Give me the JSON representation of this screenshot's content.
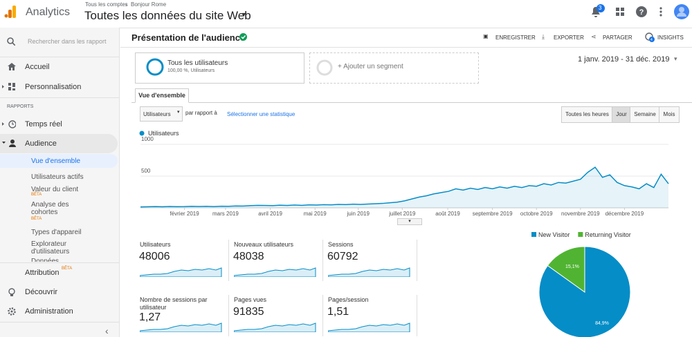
{
  "header": {
    "app": "Analytics",
    "breadcrumb_1": "Tous les comptes",
    "breadcrumb_2": "Bonjour Rome",
    "view": "Toutes les données du site Web",
    "notifications": "3"
  },
  "sidebar": {
    "search": "Rechercher dans les rapport",
    "items": [
      "Accueil",
      "Personnalisation"
    ],
    "section": "RAPPORTS",
    "reports": [
      "Temps réel",
      "Audience"
    ],
    "audience": [
      "Vue d'ensemble",
      "Utilisateurs actifs",
      "Valeur du client",
      "Analyse des cohortes",
      "Types d'appareil",
      "Explorateur d'utilisateurs",
      "Données"
    ],
    "beta": "BÊTA",
    "bottom": [
      "Attribution",
      "Découvrir",
      "Administration"
    ]
  },
  "report": {
    "title": "Présentation de l'audience",
    "actions": [
      "ENREGISTRER",
      "EXPORTER",
      "PARTAGER",
      "INSIGHTS"
    ],
    "insights_count": "4",
    "segment": "Tous les utilisateurs",
    "segment_sub": "100,00 %, Utilisateurs",
    "add_segment": "+ Ajouter un segment",
    "date_range": "1 janv. 2019 - 31 déc. 2019",
    "tab": "Vue d'ensemble",
    "metric_select": "Utilisateurs",
    "compare": "par rapport à",
    "select_stat": "Sélectionner une statistique",
    "granularity": [
      "Toutes les heures",
      "Jour",
      "Semaine",
      "Mois"
    ]
  },
  "metrics": [
    {
      "label": "Utilisateurs",
      "value": "48006"
    },
    {
      "label": "Nouveaux utilisateurs",
      "value": "48038"
    },
    {
      "label": "Sessions",
      "value": "60792"
    },
    {
      "label": "Nombre de sessions par utilisateur",
      "value": "1,27"
    },
    {
      "label": "Pages vues",
      "value": "91835"
    },
    {
      "label": "Pages/session",
      "value": "1,51"
    }
  ],
  "chart_data": [
    {
      "type": "line",
      "series": [
        {
          "name": "Utilisateurs",
          "color": "#058dc7",
          "values": [
            15,
            18,
            20,
            17,
            22,
            19,
            20,
            25,
            22,
            24,
            21,
            26,
            25,
            30,
            28,
            35,
            40,
            38,
            35,
            42,
            38,
            45,
            40,
            48,
            45,
            50,
            48,
            55,
            52,
            58,
            55,
            60,
            65,
            70,
            80,
            90,
            110,
            140,
            170,
            190,
            220,
            240,
            260,
            300,
            280,
            310,
            290,
            320,
            300,
            330,
            310,
            340,
            320,
            350,
            340,
            380,
            360,
            400,
            390,
            420,
            450,
            560,
            640,
            480,
            520,
            400,
            350,
            330,
            300,
            380,
            320,
            530,
            380
          ]
        }
      ],
      "xlim": [
        0,
        72
      ],
      "xticks": [
        {
          "value": 6,
          "label": "février 2019"
        },
        {
          "value": 11.6,
          "label": "mars 2019"
        },
        {
          "value": 17.7,
          "label": "avril 2019"
        },
        {
          "value": 23.8,
          "label": "mai 2019"
        },
        {
          "value": 29.7,
          "label": "juin 2019"
        },
        {
          "value": 35.7,
          "label": "juillet 2019"
        },
        {
          "value": 41.9,
          "label": "août 2019"
        },
        {
          "value": 48,
          "label": "septembre 2019"
        },
        {
          "value": 54,
          "label": "octobre 2019"
        },
        {
          "value": 60,
          "label": "novembre 2019"
        },
        {
          "value": 66,
          "label": "décembre 2019"
        }
      ],
      "ylim": [
        0,
        1000
      ],
      "yticks": [
        500,
        1000
      ],
      "grid": true
    },
    {
      "type": "pie",
      "categories": [
        "New Visitor",
        "Returning Visitor"
      ],
      "values": [
        84.9,
        15.1
      ],
      "value_labels": [
        "84,9%",
        "15,1%"
      ],
      "colors": [
        "#058dc7",
        "#50b432"
      ]
    }
  ]
}
